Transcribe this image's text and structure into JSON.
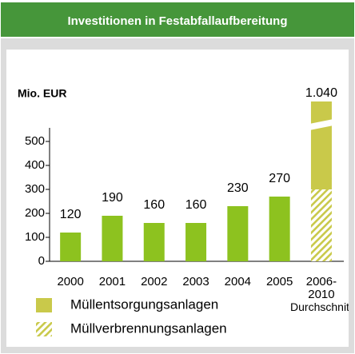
{
  "chart_data": {
    "type": "bar",
    "title": "Investitionen in Festabfallaufbereitung",
    "y_label": "Mio. EUR",
    "categories": [
      "2000",
      "2001",
      "2002",
      "2003",
      "2004",
      "2005",
      "2006-\n2010\nDurchschnitt"
    ],
    "series": [
      {
        "color": "#8dc21f",
        "values": [
          120,
          190,
          160,
          160,
          230,
          270,
          null
        ]
      },
      {
        "name": "Müllverbrennungsanlagen",
        "color": "#c9c94a",
        "pattern": "hatch",
        "values": [
          null,
          null,
          null,
          null,
          null,
          null,
          300
        ]
      },
      {
        "name": "Müllentsorgungsanlagen",
        "color": "#c9c94a",
        "values": [
          null,
          null,
          null,
          null,
          null,
          null,
          740
        ]
      }
    ],
    "total": {
      "value": 1040,
      "label": "1.040"
    },
    "axis_break": true,
    "ylim": [
      0,
      550
    ],
    "yticks": [
      0,
      100,
      200,
      300,
      400,
      500
    ]
  }
}
